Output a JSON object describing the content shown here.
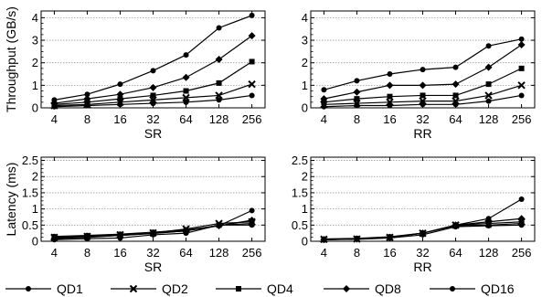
{
  "chart_data": [
    {
      "type": "line",
      "xlabel": "SR",
      "ylabel": "Throughput (GB/s)",
      "x": [
        "4",
        "8",
        "16",
        "32",
        "64",
        "128",
        "256"
      ],
      "ylim": [
        0,
        4.3
      ],
      "yticks": [
        0,
        1,
        2,
        3,
        4
      ],
      "grid": true,
      "series": [
        {
          "name": "QD1",
          "values": [
            0.35,
            0.6,
            1.05,
            1.65,
            2.35,
            3.55,
            4.1
          ]
        },
        {
          "name": "QD2",
          "values": [
            0.1,
            0.15,
            0.25,
            0.35,
            0.45,
            0.55,
            1.05
          ]
        },
        {
          "name": "QD4",
          "values": [
            0.15,
            0.25,
            0.4,
            0.55,
            0.75,
            1.1,
            2.05
          ]
        },
        {
          "name": "QD8",
          "values": [
            0.2,
            0.4,
            0.6,
            0.9,
            1.35,
            2.15,
            3.2
          ]
        },
        {
          "name": "QD16",
          "values": [
            0.05,
            0.1,
            0.15,
            0.2,
            0.25,
            0.35,
            0.55
          ]
        }
      ]
    },
    {
      "type": "line",
      "xlabel": "RR",
      "ylabel": "",
      "x": [
        "4",
        "8",
        "16",
        "32",
        "64",
        "128",
        "256"
      ],
      "ylim": [
        0,
        4.3
      ],
      "yticks": [
        0,
        1,
        2,
        3,
        4
      ],
      "grid": true,
      "series": [
        {
          "name": "QD1",
          "values": [
            0.8,
            1.2,
            1.5,
            1.7,
            1.8,
            2.75,
            3.05
          ]
        },
        {
          "name": "QD2",
          "values": [
            0.15,
            0.2,
            0.25,
            0.3,
            0.3,
            0.55,
            1.0
          ]
        },
        {
          "name": "QD4",
          "values": [
            0.25,
            0.4,
            0.5,
            0.55,
            0.55,
            1.05,
            1.75
          ]
        },
        {
          "name": "QD8",
          "values": [
            0.4,
            0.7,
            1.0,
            1.0,
            1.05,
            1.8,
            2.8
          ]
        },
        {
          "name": "QD16",
          "values": [
            0.05,
            0.1,
            0.1,
            0.15,
            0.15,
            0.3,
            0.55
          ]
        }
      ]
    },
    {
      "type": "line",
      "xlabel": "SR",
      "ylabel": "Latency (ms)",
      "x": [
        "4",
        "8",
        "16",
        "32",
        "64",
        "128",
        "256"
      ],
      "ylim": [
        0,
        2.6
      ],
      "yticks": [
        0,
        0.5,
        1,
        1.5,
        2,
        2.5
      ],
      "grid": true,
      "series": [
        {
          "name": "QD1",
          "values": [
            0.15,
            0.18,
            0.22,
            0.28,
            0.35,
            0.48,
            0.95
          ]
        },
        {
          "name": "QD2",
          "values": [
            0.12,
            0.15,
            0.2,
            0.26,
            0.38,
            0.55,
            0.6
          ]
        },
        {
          "name": "QD4",
          "values": [
            0.1,
            0.13,
            0.18,
            0.25,
            0.32,
            0.5,
            0.55
          ]
        },
        {
          "name": "QD8",
          "values": [
            0.08,
            0.12,
            0.18,
            0.24,
            0.32,
            0.48,
            0.65
          ]
        },
        {
          "name": "QD16",
          "values": [
            0.05,
            0.08,
            0.1,
            0.2,
            0.25,
            0.5,
            0.5
          ]
        }
      ]
    },
    {
      "type": "line",
      "xlabel": "RR",
      "ylabel": "",
      "x": [
        "4",
        "8",
        "16",
        "32",
        "64",
        "128",
        "256"
      ],
      "ylim": [
        0,
        2.6
      ],
      "yticks": [
        0,
        0.5,
        1,
        1.5,
        2,
        2.5
      ],
      "grid": true,
      "series": [
        {
          "name": "QD1",
          "values": [
            0.07,
            0.09,
            0.14,
            0.25,
            0.5,
            0.7,
            1.3
          ]
        },
        {
          "name": "QD2",
          "values": [
            0.06,
            0.07,
            0.12,
            0.25,
            0.5,
            0.55,
            0.6
          ]
        },
        {
          "name": "QD4",
          "values": [
            0.05,
            0.07,
            0.12,
            0.25,
            0.48,
            0.5,
            0.55
          ]
        },
        {
          "name": "QD8",
          "values": [
            0.05,
            0.07,
            0.12,
            0.25,
            0.5,
            0.6,
            0.7
          ]
        },
        {
          "name": "QD16",
          "values": [
            0.05,
            0.06,
            0.1,
            0.2,
            0.45,
            0.48,
            0.5
          ]
        }
      ]
    }
  ],
  "legend": {
    "placement": "bottom",
    "entries": [
      {
        "label": "QD1",
        "marker": "circle"
      },
      {
        "label": "QD2",
        "marker": "x"
      },
      {
        "label": "QD4",
        "marker": "square"
      },
      {
        "label": "QD8",
        "marker": "diamond"
      },
      {
        "label": "QD16",
        "marker": "circle"
      }
    ]
  },
  "colors": {
    "line": "#000000",
    "grid": "#999999",
    "background": "#ffffff"
  }
}
